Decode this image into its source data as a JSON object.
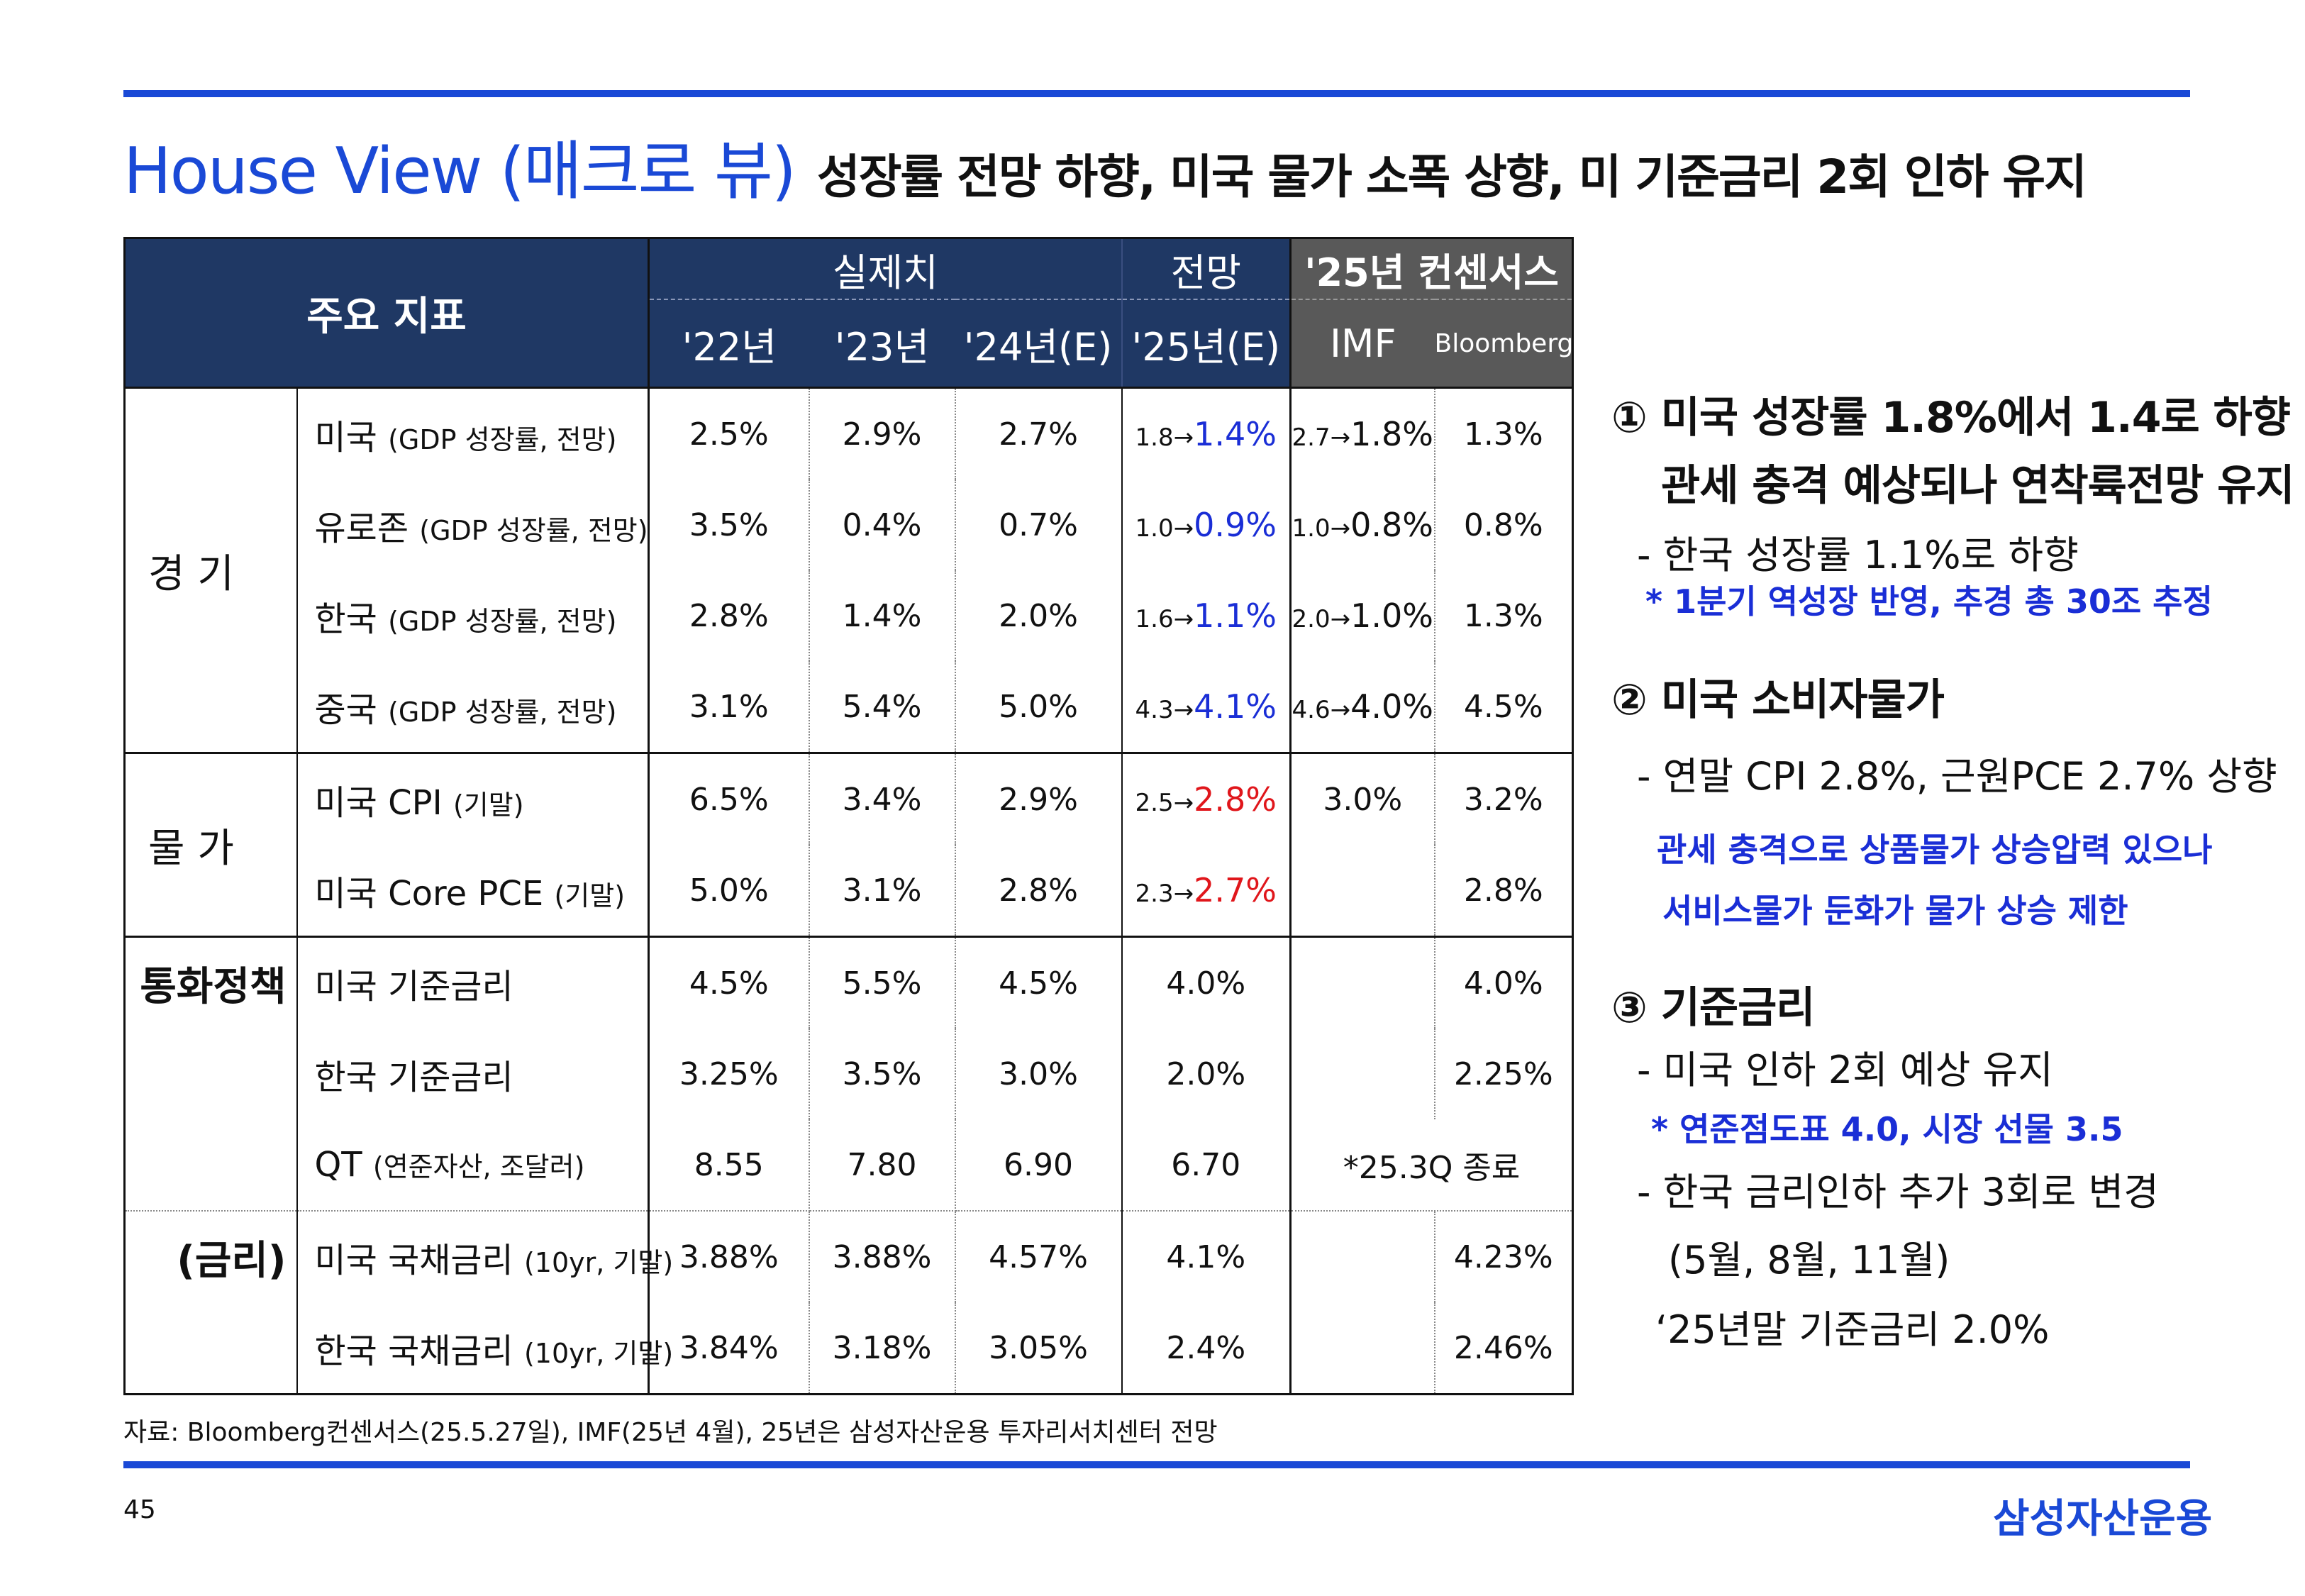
{
  "title": {
    "main": "House View (매크로 뷰)",
    "sub": "성장률 전망 하향, 미국 물가 소폭 상향, 미 기준금리 2회 인하 유지"
  },
  "table": {
    "indicator_header": "주요 지표",
    "group_actual": "실제치",
    "group_forecast": "전망",
    "group_consensus": "'25년 컨센서스",
    "columns": [
      "'22년",
      "'23년",
      "'24년(E)",
      "'25년(E)",
      "IMF",
      "Bloomberg"
    ],
    "categories": {
      "economy": "경 기",
      "prices": "물 가",
      "monetary": "통화정책",
      "rates": "(금리)"
    },
    "rows": [
      {
        "name": "미국",
        "detail": "(GDP 성장률, 전망)",
        "y22": "2.5%",
        "y23": "2.9%",
        "y24": "2.7%",
        "f_from": "1.8→",
        "f_to": "1.4%",
        "imf_from": "2.7→",
        "imf_to": "1.8%",
        "bbg": "1.3%"
      },
      {
        "name": "유로존",
        "detail": "(GDP 성장률, 전망)",
        "y22": "3.5%",
        "y23": "0.4%",
        "y24": "0.7%",
        "f_from": "1.0→",
        "f_to": "0.9%",
        "imf_from": "1.0→",
        "imf_to": "0.8%",
        "bbg": "0.8%"
      },
      {
        "name": "한국",
        "detail": "(GDP 성장률, 전망)",
        "y22": "2.8%",
        "y23": "1.4%",
        "y24": "2.0%",
        "f_from": "1.6→",
        "f_to": "1.1%",
        "imf_from": "2.0→",
        "imf_to": "1.0%",
        "bbg": "1.3%"
      },
      {
        "name": "중국",
        "detail": "(GDP 성장률, 전망)",
        "y22": "3.1%",
        "y23": "5.4%",
        "y24": "5.0%",
        "f_from": "4.3→",
        "f_to": "4.1%",
        "imf_from": "4.6→",
        "imf_to": "4.0%",
        "bbg": "4.5%"
      },
      {
        "name": "미국 CPI",
        "detail": "(기말)",
        "y22": "6.5%",
        "y23": "3.4%",
        "y24": "2.9%",
        "f_from": "2.5→",
        "f_to": "2.8%",
        "imf": "3.0%",
        "bbg": "3.2%"
      },
      {
        "name": "미국 Core PCE",
        "detail": "(기말)",
        "y22": "5.0%",
        "y23": "3.1%",
        "y24": "2.8%",
        "f_from": "2.3→",
        "f_to": "2.7%",
        "imf": "",
        "bbg": "2.8%"
      },
      {
        "name": "미국 기준금리",
        "detail": "",
        "y22": "4.5%",
        "y23": "5.5%",
        "y24": "4.5%",
        "f": "4.0%",
        "imf": "",
        "bbg": "4.0%"
      },
      {
        "name": "한국 기준금리",
        "detail": "",
        "y22": "3.25%",
        "y23": "3.5%",
        "y24": "3.0%",
        "f": "2.0%",
        "imf": "",
        "bbg": "2.25%"
      },
      {
        "name": "QT",
        "detail": "(연준자산, 조달러)",
        "y22": "8.55",
        "y23": "7.80",
        "y24": "6.90",
        "f": "6.70",
        "consensus_merged": "*25.3Q 종료"
      },
      {
        "name": "미국 국채금리",
        "detail": "(10yr, 기말)",
        "y22": "3.88%",
        "y23": "3.88%",
        "y24": "4.57%",
        "f": "4.1%",
        "imf": "",
        "bbg": "4.23%"
      },
      {
        "name": "한국 국채금리",
        "detail": "(10yr, 기말)",
        "y22": "3.84%",
        "y23": "3.18%",
        "y24": "3.05%",
        "f": "2.4%",
        "imf": "",
        "bbg": "2.46%"
      }
    ]
  },
  "notes": {
    "n1_head1": "① 미국 성장률 1.8%에서 1.4로 하향",
    "n1_head2": "관세 충격 예상되나 연착륙전망 유지",
    "n1_sub": "- 한국 성장률 1.1%로 하향",
    "n1_blue": "* 1분기 역성장 반영, 추경 총 30조 추정",
    "n2_head": "② 미국 소비자물가",
    "n2_sub": "- 연말 CPI 2.8%, 근원PCE 2.7% 상향",
    "n2_blue1": "관세 충격으로 상품물가 상승압력 있으나",
    "n2_blue2": "서비스물가 둔화가 물가 상승 제한",
    "n3_head": "③ 기준금리",
    "n3_sub1": "- 미국 인하 2회 예상 유지",
    "n3_blue": "* 연준점도표 4.0, 시장 선물 3.5",
    "n3_sub2": "- 한국 금리인하 추가 3회로 변경",
    "n3_sub3": "(5월, 8월, 11월)",
    "n3_sub4": "‘25년말 기준금리 2.0%"
  },
  "footer": {
    "source": "자료: Bloomberg컨센서스(25.5.27일), IMF(25년 4월), 25년은 삼성자산운용 투자리서치센터 전망",
    "page": "45",
    "logo": "삼성자산운용"
  },
  "colors": {
    "accent": "#1a49d6",
    "header_navy": "#1f3864",
    "header_gray": "#595959",
    "forecast_down": "#1a2ed6",
    "forecast_up": "#e0161b"
  }
}
